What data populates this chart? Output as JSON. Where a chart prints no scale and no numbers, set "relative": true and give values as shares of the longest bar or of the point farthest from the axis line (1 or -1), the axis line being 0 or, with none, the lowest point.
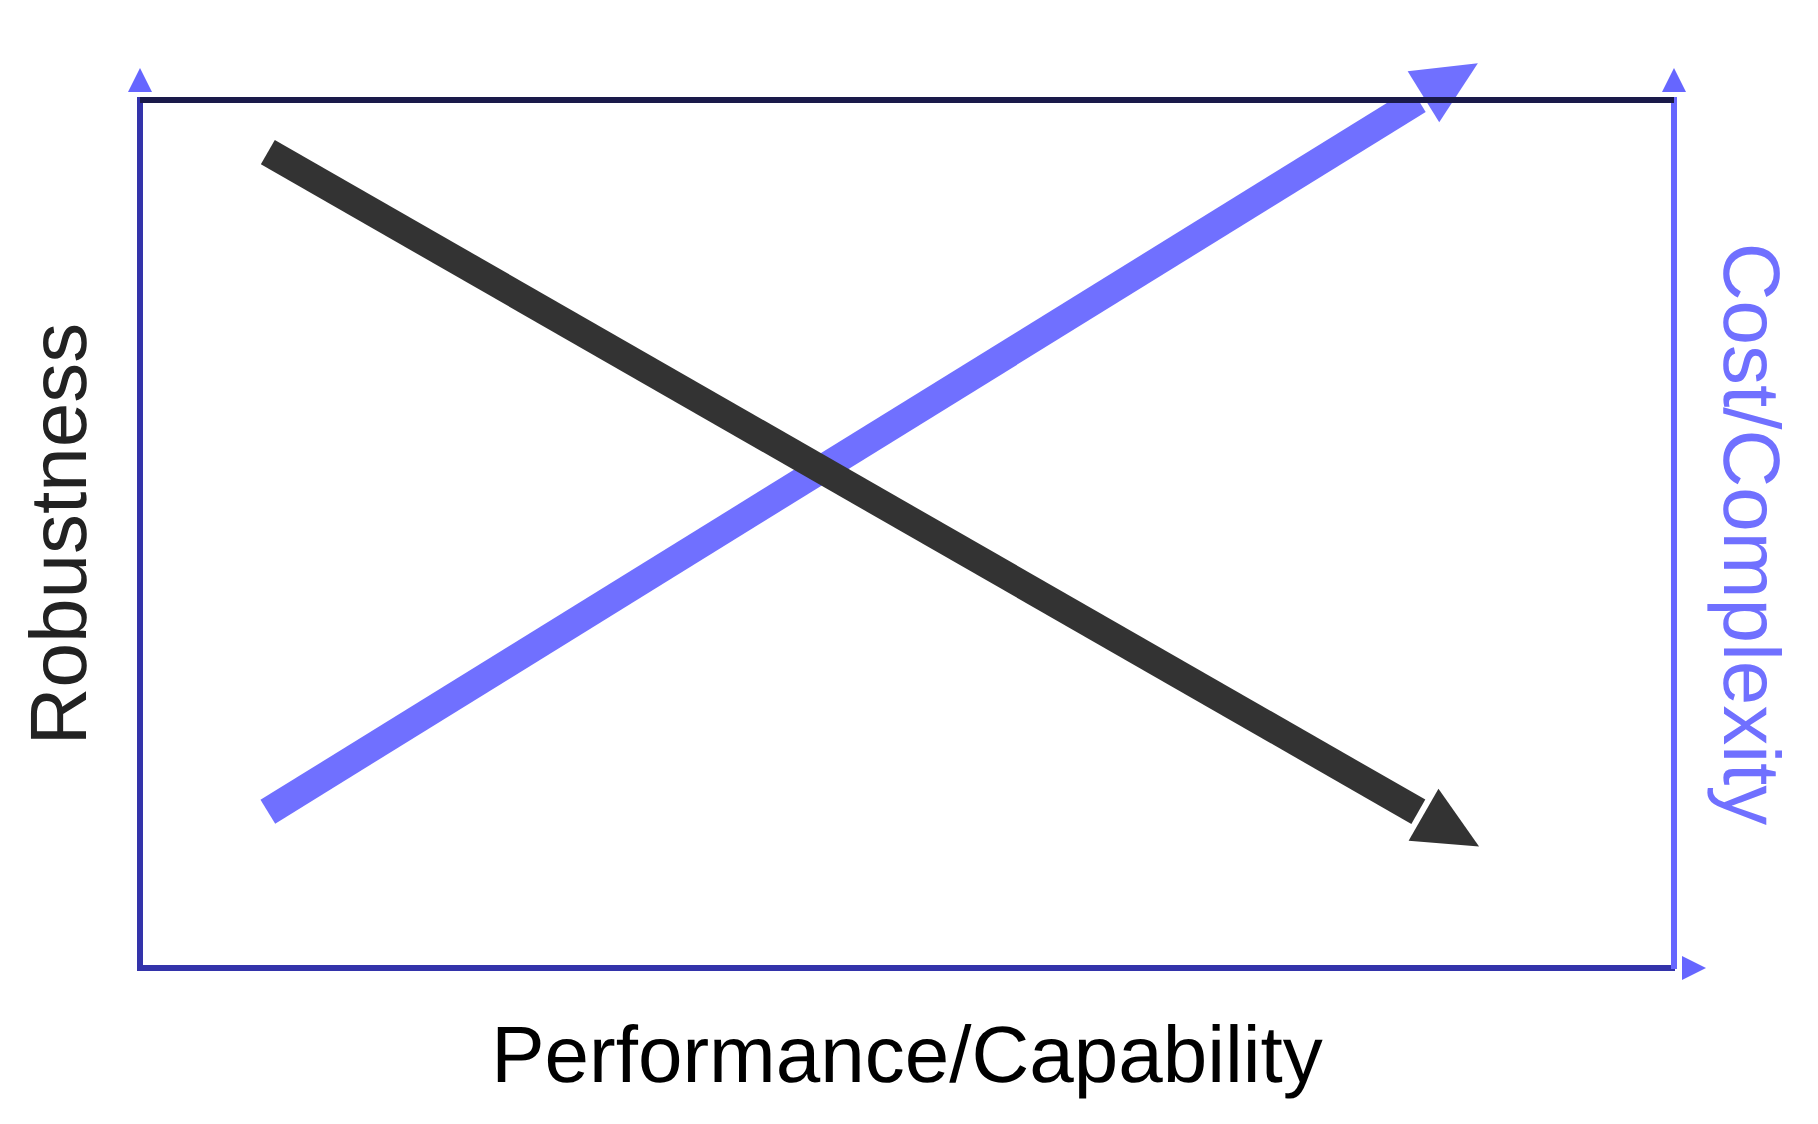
{
  "chart_data": {
    "type": "line",
    "relative": true,
    "xlabel": "Performance/Capability",
    "ylabel": "Robustness",
    "y2label": "Cost/Complexity",
    "categories": [
      null,
      null,
      null,
      null,
      null,
      null,
      null,
      null,
      null,
      null,
      null,
      null,
      null
    ],
    "series": [
      {
        "color": "#333333",
        "values": [
          null,
          0.94,
          null,
          null,
          null,
          null,
          null,
          null,
          null,
          null,
          0.18,
          null,
          null
        ]
      },
      {
        "color": "#7070ff",
        "values": [
          null,
          0.18,
          null,
          null,
          null,
          null,
          null,
          null,
          null,
          null,
          1,
          null,
          null
        ]
      }
    ],
    "grid": false,
    "legend": false,
    "marker": "none",
    "line_style": "solid"
  }
}
